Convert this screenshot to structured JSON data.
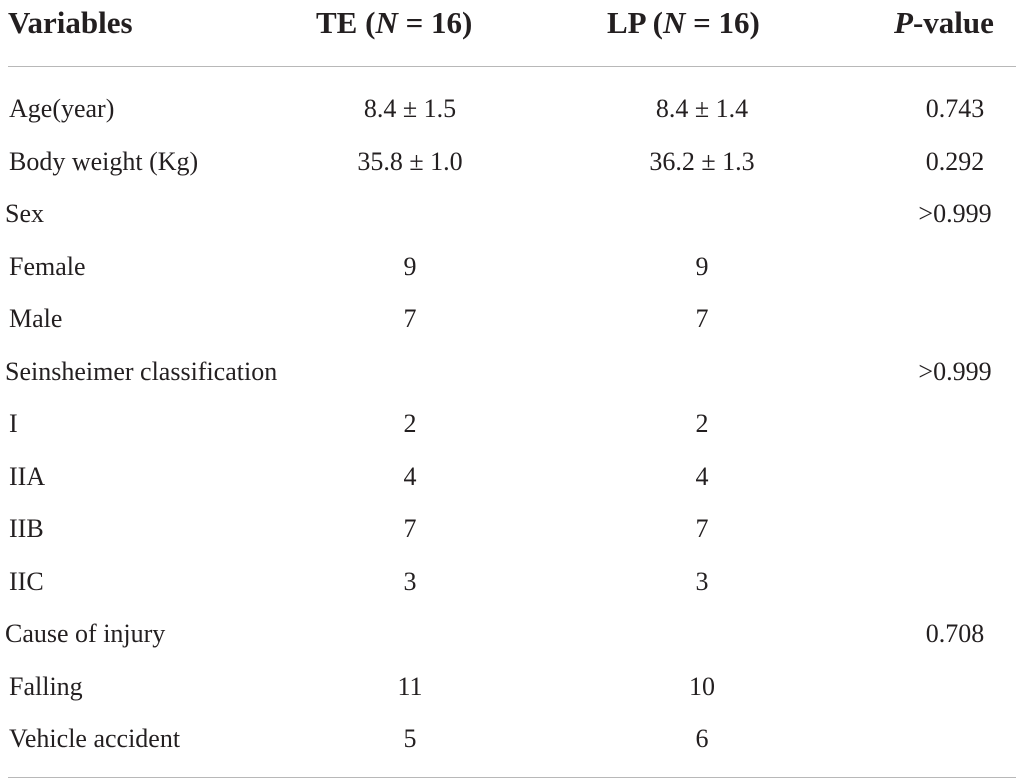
{
  "table": {
    "headers": {
      "variables": "Variables",
      "te": "TE (N = 16)",
      "lp": "LP (N = 16)",
      "p": "P-value"
    },
    "rows": [
      {
        "label": "Age(year)",
        "te": "8.4 ± 1.5",
        "lp": "8.4 ± 1.4",
        "p": "0.743",
        "group": false
      },
      {
        "label": "Body weight (Kg)",
        "te": "35.8 ± 1.0",
        "lp": "36.2 ± 1.3",
        "p": "0.292",
        "group": false
      },
      {
        "label": "Sex",
        "te": "",
        "lp": "",
        "p": ">0.999",
        "group": true
      },
      {
        "label": "Female",
        "te": "9",
        "lp": "9",
        "p": "",
        "group": false
      },
      {
        "label": "Male",
        "te": "7",
        "lp": "7",
        "p": "",
        "group": false
      },
      {
        "label": "Seinsheimer classification",
        "te": "",
        "lp": "",
        "p": ">0.999",
        "group": true
      },
      {
        "label": "I",
        "te": "2",
        "lp": "2",
        "p": "",
        "group": false
      },
      {
        "label": "IIA",
        "te": "4",
        "lp": "4",
        "p": "",
        "group": false
      },
      {
        "label": "IIB",
        "te": "7",
        "lp": "7",
        "p": "",
        "group": false
      },
      {
        "label": "IIC",
        "te": "3",
        "lp": "3",
        "p": "",
        "group": false
      },
      {
        "label": "Cause of injury",
        "te": "",
        "lp": "",
        "p": "0.708",
        "group": true
      },
      {
        "label": "Falling",
        "te": "11",
        "lp": "10",
        "p": "",
        "group": false
      },
      {
        "label": "Vehicle accident",
        "te": "5",
        "lp": "6",
        "p": "",
        "group": false
      }
    ]
  }
}
